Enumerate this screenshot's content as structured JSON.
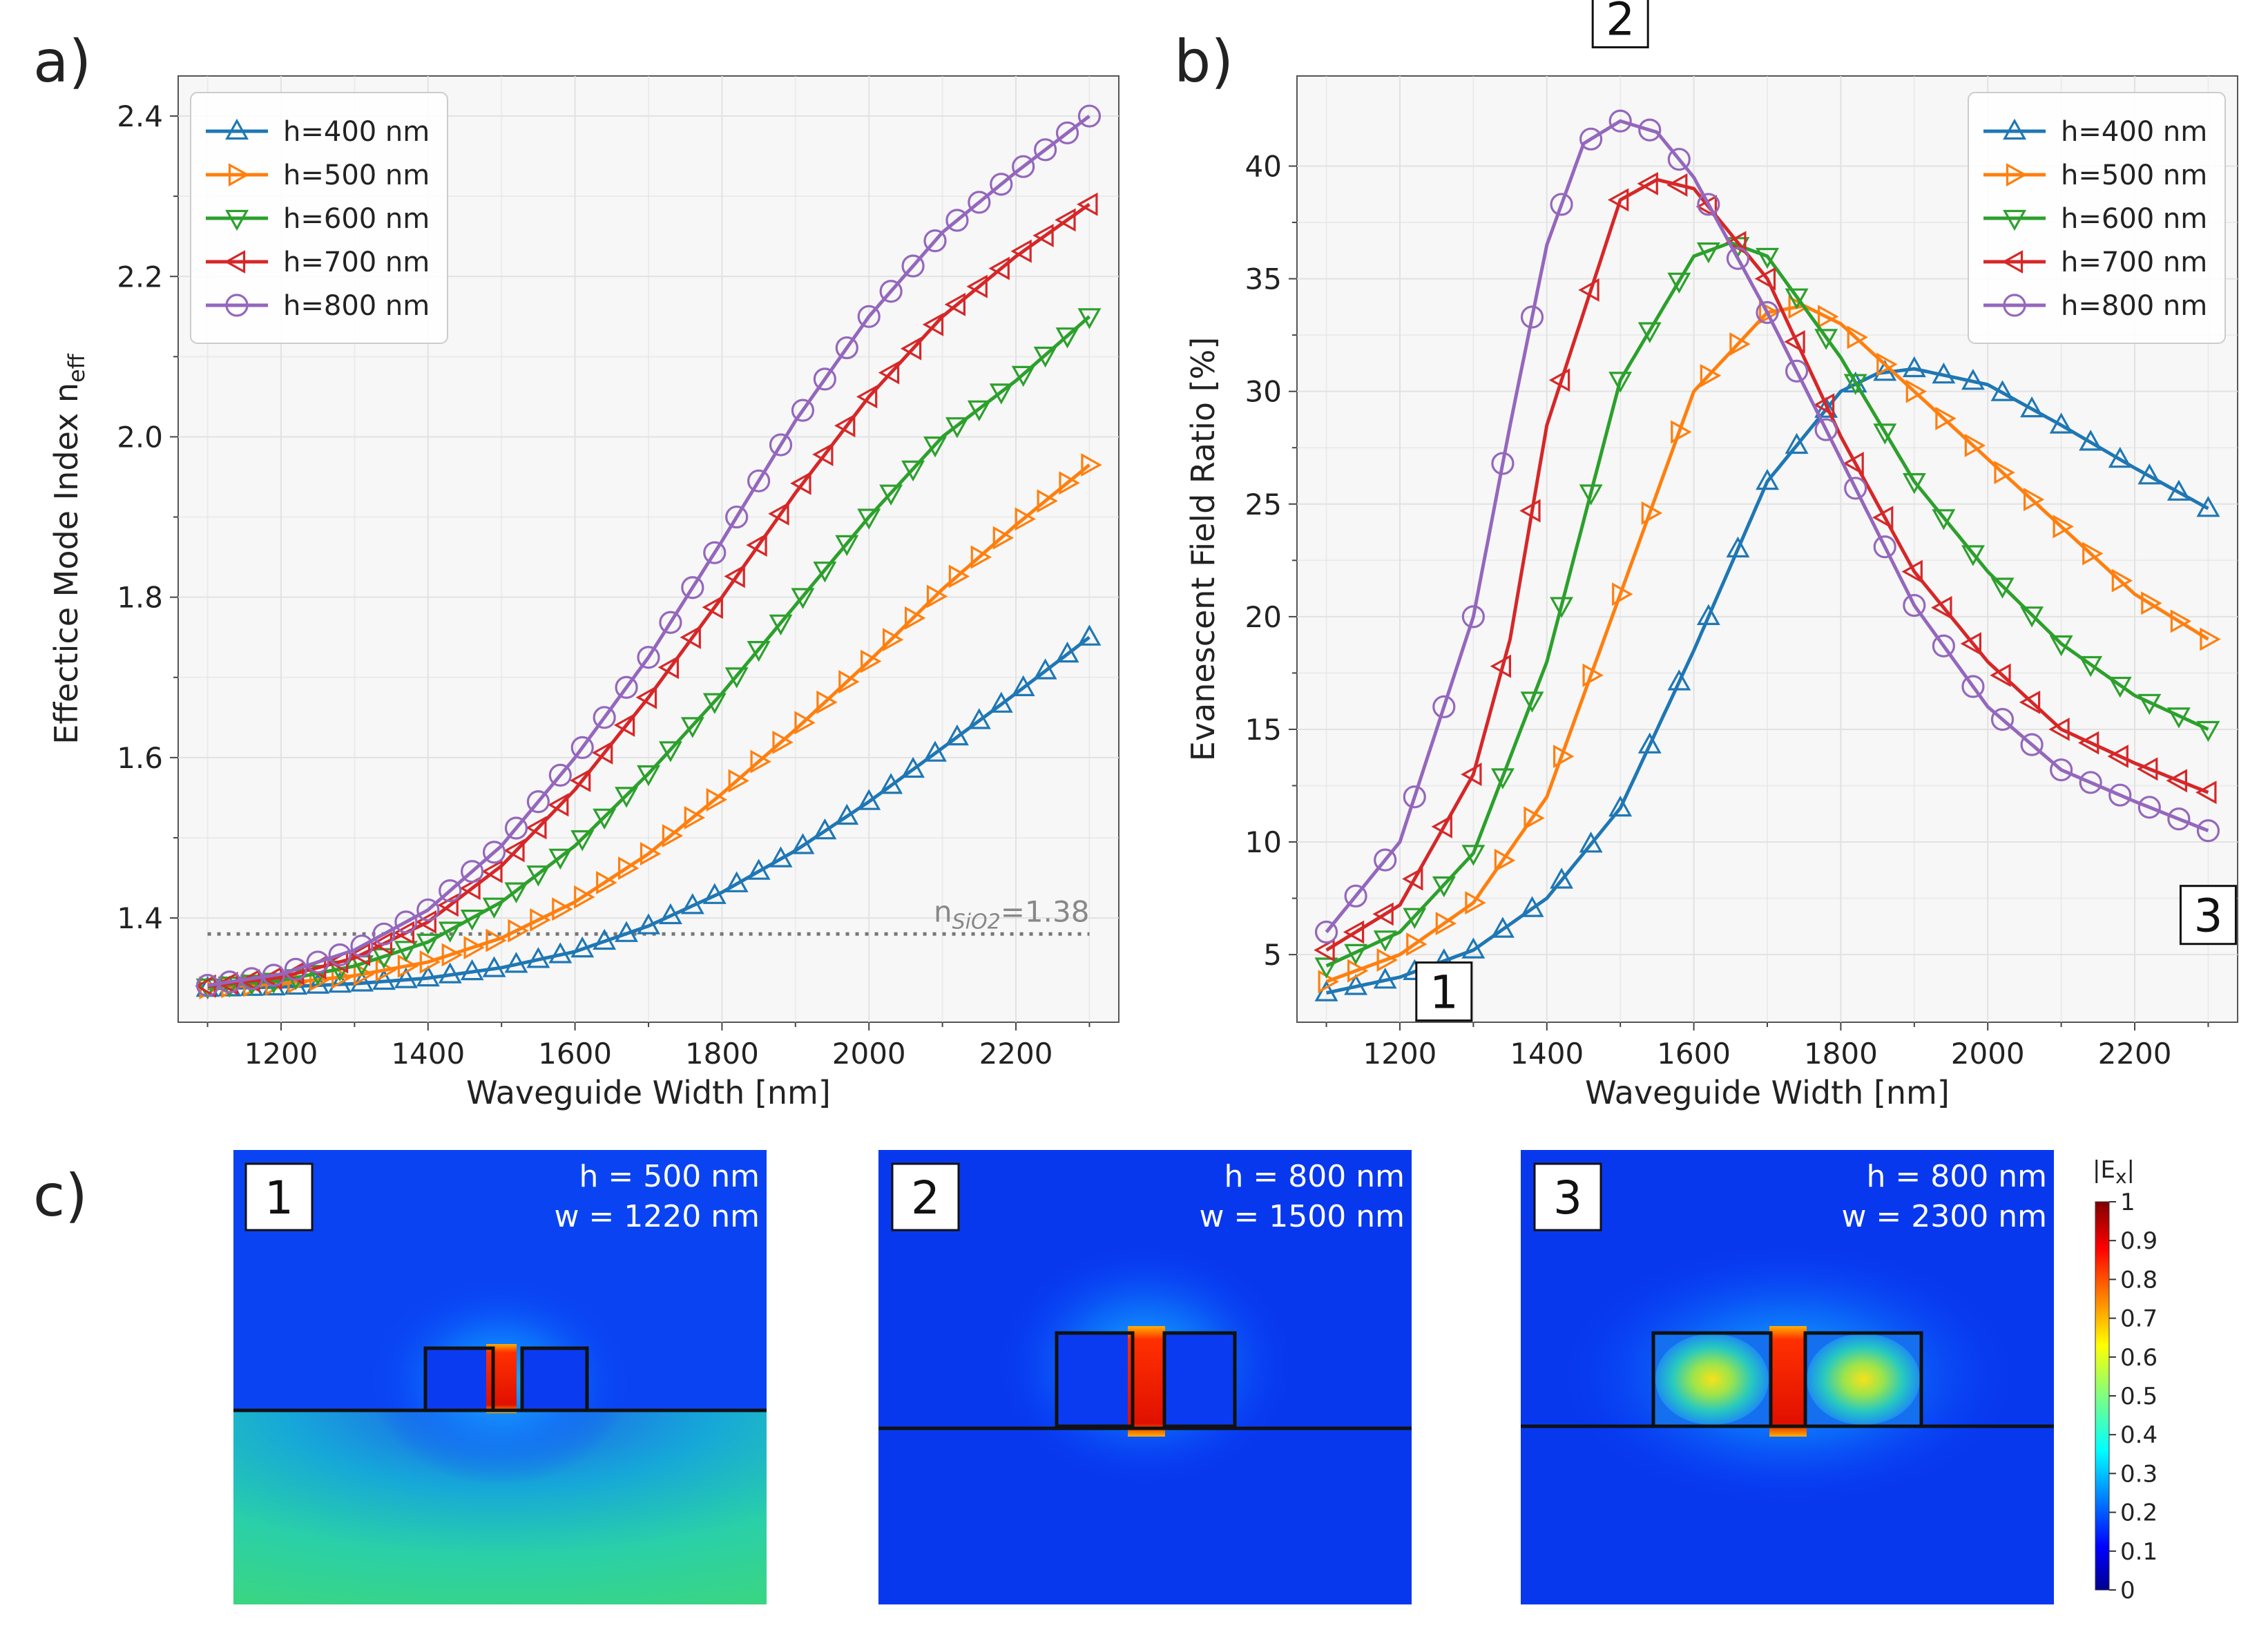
{
  "panel_labels": {
    "a": "a)",
    "b": "b)",
    "c": "c)"
  },
  "series_colors": [
    "#1f77b4",
    "#ff7f0e",
    "#2ca02c",
    "#d62728",
    "#9467bd"
  ],
  "chart_data": [
    {
      "id": "a",
      "type": "line",
      "xlabel": "Waveguide Width [nm]",
      "ylabel": "Effectice Mode Index n",
      "ylabel_sub": "eff",
      "xlim": [
        1060,
        2340
      ],
      "ylim": [
        1.27,
        2.45
      ],
      "xticks": [
        1200,
        1400,
        1600,
        1800,
        2000,
        2200
      ],
      "xtick_labels": [
        "1200",
        "1400",
        "1600",
        "1800",
        "2000",
        "2200"
      ],
      "yticks": [
        1.4,
        1.6,
        1.8,
        2.0,
        2.2,
        2.4
      ],
      "ytick_labels": [
        "1.4",
        "1.6",
        "1.8",
        "2.0",
        "2.2",
        "2.4"
      ],
      "legend_position": "top-left",
      "reference_line": {
        "y": 1.38,
        "label_main": "n",
        "label_sub": "SiO2",
        "label_value": "=1.38"
      },
      "marker_x": [
        1100,
        1130,
        1160,
        1190,
        1220,
        1250,
        1280,
        1310,
        1340,
        1370,
        1400,
        1430,
        1460,
        1490,
        1520,
        1550,
        1580,
        1610,
        1640,
        1670,
        1700,
        1730,
        1760,
        1790,
        1820,
        1850,
        1880,
        1910,
        1940,
        1970,
        2000,
        2030,
        2060,
        2090,
        2120,
        2150,
        2180,
        2210,
        2240,
        2270,
        2300
      ],
      "series": [
        {
          "name": "h=400 nm",
          "marker": "triangle-up",
          "x": [
            1100,
            1200,
            1300,
            1400,
            1500,
            1600,
            1700,
            1800,
            1900,
            2000,
            2100,
            2200,
            2300
          ],
          "values": [
            1.312,
            1.314,
            1.318,
            1.325,
            1.338,
            1.358,
            1.39,
            1.432,
            1.484,
            1.545,
            1.612,
            1.68,
            1.75
          ]
        },
        {
          "name": "h=500 nm",
          "marker": "triangle-right",
          "x": [
            1100,
            1200,
            1300,
            1400,
            1500,
            1600,
            1700,
            1800,
            1900,
            2000,
            2100,
            2200,
            2300
          ],
          "values": [
            1.313,
            1.318,
            1.328,
            1.345,
            1.375,
            1.42,
            1.48,
            1.555,
            1.635,
            1.72,
            1.81,
            1.89,
            1.965
          ]
        },
        {
          "name": "h=600 nm",
          "marker": "triangle-down",
          "x": [
            1100,
            1200,
            1300,
            1400,
            1500,
            1600,
            1700,
            1800,
            1900,
            2000,
            2100,
            2200,
            2300
          ],
          "values": [
            1.314,
            1.322,
            1.34,
            1.37,
            1.42,
            1.49,
            1.58,
            1.68,
            1.79,
            1.9,
            2.0,
            2.07,
            2.15
          ]
        },
        {
          "name": "h=700 nm",
          "marker": "triangle-left",
          "x": [
            1100,
            1200,
            1300,
            1400,
            1500,
            1600,
            1700,
            1800,
            1900,
            2000,
            2100,
            2200,
            2300
          ],
          "values": [
            1.315,
            1.326,
            1.35,
            1.395,
            1.465,
            1.56,
            1.675,
            1.8,
            1.93,
            2.05,
            2.15,
            2.225,
            2.29
          ]
        },
        {
          "name": "h=800 nm",
          "marker": "circle",
          "x": [
            1100,
            1200,
            1300,
            1400,
            1500,
            1600,
            1700,
            1800,
            1900,
            2000,
            2100,
            2200,
            2300
          ],
          "values": [
            1.316,
            1.33,
            1.36,
            1.41,
            1.49,
            1.6,
            1.725,
            1.87,
            2.02,
            2.15,
            2.255,
            2.33,
            2.4
          ]
        }
      ]
    },
    {
      "id": "b",
      "type": "line",
      "xlabel": "Waveguide Width [nm]",
      "ylabel": "Evanescent Field Ratio [%]",
      "xlim": [
        1060,
        2340
      ],
      "ylim": [
        2,
        44
      ],
      "xticks": [
        1200,
        1400,
        1600,
        1800,
        2000,
        2200
      ],
      "xtick_labels": [
        "1200",
        "1400",
        "1600",
        "1800",
        "2000",
        "2200"
      ],
      "yticks": [
        5,
        10,
        15,
        20,
        25,
        30,
        35,
        40
      ],
      "ytick_labels": [
        "5",
        "10",
        "15",
        "20",
        "25",
        "30",
        "35",
        "40"
      ],
      "legend_position": "top-right",
      "marker_x": [
        1100,
        1140,
        1180,
        1220,
        1260,
        1300,
        1340,
        1380,
        1420,
        1460,
        1500,
        1540,
        1580,
        1620,
        1660,
        1700,
        1740,
        1780,
        1820,
        1860,
        1900,
        1940,
        1980,
        2020,
        2060,
        2100,
        2140,
        2180,
        2220,
        2260,
        2300
      ],
      "annotations": [
        {
          "text": "1",
          "x": 1260,
          "y": 3.3
        },
        {
          "text": "2",
          "x": 1500,
          "y": 46.5
        },
        {
          "text": "3",
          "x": 2300,
          "y": 6.7
        }
      ],
      "series": [
        {
          "name": "h=400 nm",
          "marker": "triangle-up",
          "x": [
            1100,
            1200,
            1300,
            1400,
            1500,
            1600,
            1700,
            1800,
            1850,
            1900,
            2000,
            2100,
            2200,
            2300
          ],
          "values": [
            3.3,
            4.0,
            5.2,
            7.5,
            11.5,
            18.5,
            26.0,
            30.0,
            30.8,
            31.0,
            30.3,
            28.5,
            26.6,
            24.8
          ]
        },
        {
          "name": "h=500 nm",
          "marker": "triangle-right",
          "x": [
            1100,
            1200,
            1300,
            1400,
            1500,
            1600,
            1700,
            1750,
            1800,
            1900,
            2000,
            2100,
            2200,
            2300
          ],
          "values": [
            3.8,
            5.0,
            7.3,
            12.0,
            21.0,
            30.0,
            33.5,
            33.8,
            33.0,
            30.0,
            27.0,
            24.0,
            21.0,
            19.0
          ]
        },
        {
          "name": "h=600 nm",
          "marker": "triangle-down",
          "x": [
            1100,
            1200,
            1300,
            1400,
            1500,
            1600,
            1650,
            1700,
            1800,
            1900,
            2000,
            2100,
            2200,
            2300
          ],
          "values": [
            4.5,
            6.0,
            9.5,
            18.0,
            30.5,
            36.0,
            36.6,
            36.0,
            31.5,
            26.0,
            22.0,
            18.8,
            16.5,
            15.0
          ]
        },
        {
          "name": "h=700 nm",
          "marker": "triangle-left",
          "x": [
            1100,
            1200,
            1300,
            1350,
            1400,
            1500,
            1550,
            1600,
            1700,
            1800,
            1900,
            2000,
            2100,
            2200,
            2300
          ],
          "values": [
            5.2,
            7.2,
            13.0,
            19.0,
            28.5,
            38.5,
            39.4,
            39.0,
            35.0,
            28.0,
            22.0,
            18.0,
            15.0,
            13.5,
            12.2
          ]
        },
        {
          "name": "h=800 nm",
          "marker": "circle",
          "x": [
            1100,
            1200,
            1300,
            1350,
            1400,
            1450,
            1500,
            1550,
            1600,
            1700,
            1800,
            1900,
            2000,
            2100,
            2200,
            2300
          ],
          "values": [
            6.0,
            10.0,
            20.0,
            28.5,
            36.5,
            41.0,
            42.0,
            41.5,
            39.5,
            33.5,
            27.0,
            20.5,
            16.0,
            13.2,
            11.8,
            10.5
          ]
        }
      ]
    }
  ],
  "field_maps": {
    "colorbar": {
      "title_main": "|E",
      "title_sub": "x",
      "title_end": "|",
      "ticks": [
        "1",
        "0.9",
        "0.8",
        "0.7",
        "0.6",
        "0.5",
        "0.4",
        "0.3",
        "0.2",
        "0.1",
        "0"
      ]
    },
    "maps": [
      {
        "number": "1",
        "h_label": "h = 500 nm",
        "w_label": "w = 1220 nm",
        "max_field": 1.0
      },
      {
        "number": "2",
        "h_label": "h = 800 nm",
        "w_label": "w = 1500 nm",
        "max_field": 1.0
      },
      {
        "number": "3",
        "h_label": "h = 800 nm",
        "w_label": "w = 2300 nm",
        "max_field": 1.0
      }
    ]
  }
}
